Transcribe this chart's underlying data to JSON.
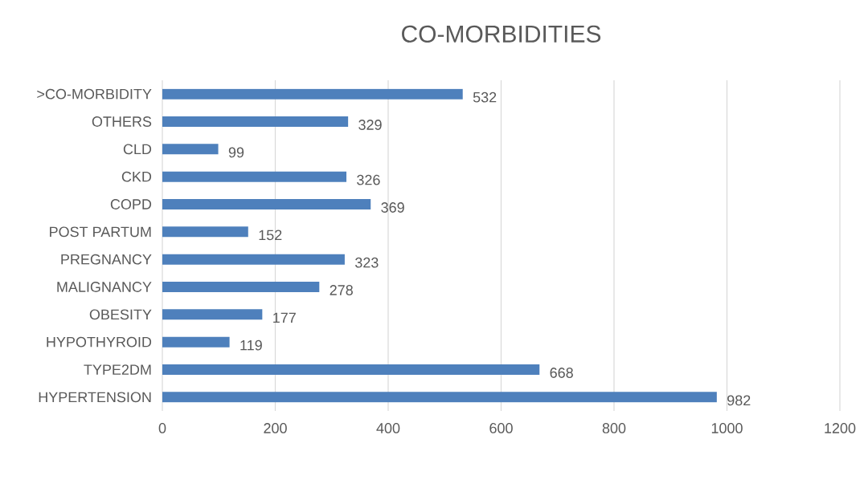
{
  "chart_data": {
    "type": "bar",
    "orientation": "horizontal",
    "title": "CO-MORBIDITIES",
    "categories": [
      ">CO-MORBIDITY",
      "OTHERS",
      "CLD",
      "CKD",
      "COPD",
      "POST PARTUM",
      "PREGNANCY",
      "MALIGNANCY",
      "OBESITY",
      "HYPOTHYROID",
      "TYPE2DM",
      "HYPERTENSION"
    ],
    "values": [
      532,
      329,
      99,
      326,
      369,
      152,
      323,
      278,
      177,
      119,
      668,
      982
    ],
    "color": "#4e80bc",
    "xlim": [
      0,
      1200
    ],
    "xticks": [
      0,
      200,
      400,
      600,
      800,
      1000,
      1200
    ],
    "grid": "x",
    "data_labels": true
  }
}
